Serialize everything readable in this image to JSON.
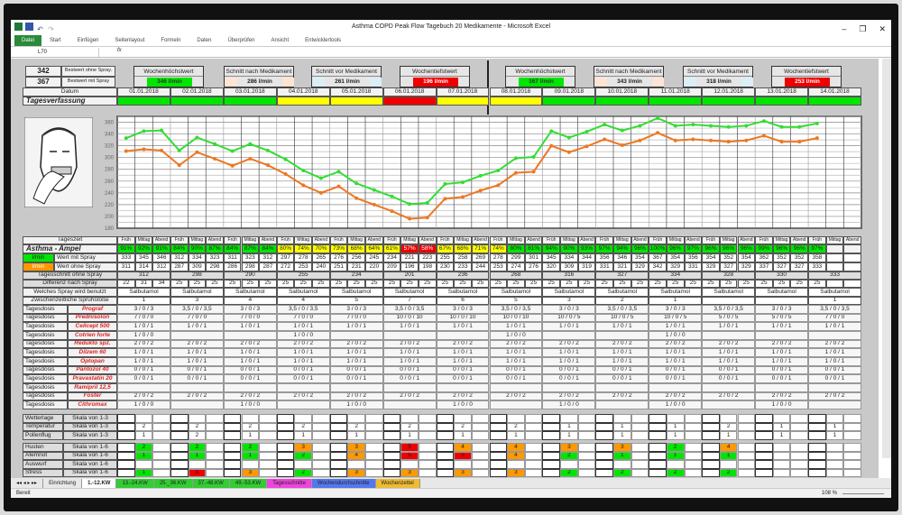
{
  "window": {
    "title": "Asthma COPD Peak Flow Tagebuch  20 Medikamente  -  Microsoft Excel"
  },
  "ribbon": {
    "tabs": [
      "Datei",
      "Start",
      "Einfügen",
      "Seitenlayout",
      "Formeln",
      "Daten",
      "Überprüfen",
      "Ansicht",
      "Entwicklertools"
    ]
  },
  "formula_bar": {
    "name_box": "L70",
    "fx": "fx",
    "value": ""
  },
  "best": {
    "ohne_value": "342",
    "ohne_label": "Bestwert ohne Spray.",
    "mit_value": "367",
    "mit_label": "Bestwert mit Spray"
  },
  "weeks": [
    {
      "hoechst_label": "Wochenhöchstwert",
      "hoechst": "346  l/min",
      "nach_label": "Schnitt nach Medikament",
      "nach": "286  l/min",
      "vor_label": "Schnitt vor Medikament",
      "vor": "261  l/min",
      "tief_label": "Wochentiefstwert",
      "tief": "196  l/min"
    },
    {
      "hoechst_label": "Wochenhöchstwert",
      "hoechst": "367  l/min",
      "nach_label": "Schnitt nach Medikament",
      "nach": "343  l/min",
      "vor_label": "Schnitt vor Medikament",
      "vor": "318  l/min",
      "tief_label": "Wochentiefstwert",
      "tief": "253  l/min"
    }
  ],
  "colors": {
    "green": "#00e600",
    "yellow": "#ffff00",
    "red": "#ee0000",
    "orange": "#ff9900",
    "line_mit": "#33dd33",
    "line_ohne": "#ee7722"
  },
  "labels": {
    "datum": "Datum",
    "tagesverfassung": "Tagesverfassung",
    "tageszeit": "Tageszeit",
    "ampel": "Asthma - Ampel",
    "unit": "l/min",
    "mit": "Wert mit Spray",
    "ohne": "Wert ohne Spray",
    "schnitt": "Tagesschnitt ohne Spray",
    "diff": "Differenz nach Spray",
    "spray": "Welches Spray wird benutzt",
    "zwisch": "Zwischenzeitliche Sprühstöße",
    "dosis": "Tagesdosis",
    "times": [
      "Früh",
      "Mittag",
      "Abend"
    ]
  },
  "dates": [
    "01.01.2018",
    "02.01.2018",
    "03.01.2018",
    "04.01.2018",
    "05.01.2018",
    "06.01.2018",
    "07.01.2018",
    "08.01.2018",
    "09.01.2018",
    "10.01.2018",
    "11.01.2018",
    "12.01.2018",
    "13.01.2018",
    "14.01.2018"
  ],
  "tagesverfassung": [
    "green",
    "green",
    "green",
    "yellow",
    "yellow",
    "red",
    "yellow",
    "yellow",
    "green",
    "green",
    "green",
    "green",
    "green",
    "green"
  ],
  "ampel": {
    "values": [
      "91%",
      "92%",
      "91%",
      "84%",
      "90%",
      "87%",
      "84%",
      "87%",
      "84%",
      "80%",
      "74%",
      "70%",
      "73%",
      "68%",
      "64%",
      "61%",
      "57%",
      "58%",
      "67%",
      "68%",
      "71%",
      "74%",
      "80%",
      "81%",
      "94%",
      "90%",
      "93%",
      "97%",
      "94%",
      "96%",
      "100%",
      "96%",
      "97%",
      "96%",
      "96%",
      "96%",
      "99%",
      "96%",
      "96%",
      "97%",
      "",
      ""
    ],
    "colors": [
      "green",
      "green",
      "green",
      "green",
      "green",
      "green",
      "green",
      "green",
      "green",
      "yellow",
      "yellow",
      "yellow",
      "yellow",
      "yellow",
      "yellow",
      "yellow",
      "red",
      "red",
      "yellow",
      "yellow",
      "yellow",
      "yellow",
      "green",
      "green",
      "green",
      "green",
      "green",
      "green",
      "green",
      "green",
      "green",
      "green",
      "green",
      "green",
      "green",
      "green",
      "green",
      "green",
      "green",
      "green",
      "",
      ""
    ]
  },
  "chart_data": {
    "type": "line",
    "ylim": [
      180,
      370
    ],
    "yticks": [
      180,
      200,
      220,
      240,
      260,
      280,
      300,
      320,
      340,
      360
    ],
    "grid": true,
    "series": [
      {
        "name": "Wert mit Spray",
        "color": "#33dd33",
        "values": [
          333,
          345,
          346,
          312,
          334,
          323,
          311,
          323,
          312,
          297,
          278,
          265,
          276,
          256,
          245,
          234,
          221,
          223,
          255,
          258,
          269,
          278,
          299,
          301,
          345,
          334,
          344,
          356,
          346,
          354,
          367,
          354,
          356,
          354,
          352,
          354,
          362,
          352,
          352,
          358
        ]
      },
      {
        "name": "Wert ohne Spray",
        "color": "#ee7722",
        "values": [
          311,
          314,
          312,
          287,
          309,
          298,
          286,
          298,
          287,
          272,
          253,
          240,
          251,
          231,
          220,
          209,
          196,
          198,
          230,
          233,
          244,
          253,
          274,
          276,
          320,
          309,
          319,
          331,
          321,
          329,
          342,
          329,
          331,
          329,
          327,
          329,
          337,
          327,
          327,
          333
        ]
      }
    ]
  },
  "schnitt": [
    "312",
    "298",
    "290",
    "255",
    "234",
    "201",
    "236",
    "268",
    "316",
    "327",
    "334",
    "328",
    "330",
    "333"
  ],
  "diff": [
    "22",
    "31",
    "34",
    "25",
    "25",
    "25",
    "25",
    "25",
    "25",
    "25",
    "25",
    "25",
    "25",
    "25",
    "25",
    "25",
    "25",
    "25",
    "25",
    "25",
    "25",
    "25",
    "25",
    "25",
    "25",
    "25",
    "25",
    "25",
    "25",
    "25",
    "25",
    "25",
    "25",
    "25",
    "25",
    "25",
    "25",
    "25",
    "25",
    "25",
    "",
    ""
  ],
  "spray": [
    "Salbutamol",
    "Salbutamol",
    "Salbutamol",
    "Salbutamol",
    "Salbutamol",
    "Salbutamol",
    "Salbutamol",
    "Salbutamol",
    "Salbutamol",
    "Salbutamol",
    "Salbutamol",
    "Salbutamol",
    "Salbutamol",
    "Salbutamol"
  ],
  "zwisch": [
    "1",
    "3",
    "4",
    "4",
    "5",
    "7",
    "6",
    "5",
    "3",
    "2",
    "1",
    "",
    "",
    "1"
  ],
  "meds": [
    {
      "name": "Prograf",
      "doses": [
        "3 / 0 / 3",
        "3,5 / 0 / 3,5",
        "3 / 0 / 3",
        "3,5 / 0 / 3,5",
        "3 / 0 / 3",
        "3,5 / 0 / 3,5",
        "3 / 0 / 3",
        "3,5 / 0 / 3,5",
        "3 / 0 / 3",
        "3,5 / 0 / 3,5",
        "3 / 0 / 3",
        "3,5 / 0 / 3,5",
        "3 / 0 / 3",
        "3,5 / 0 / 3,5"
      ]
    },
    {
      "name": "Prednisolon",
      "doses": [
        "7 / 0 / 0",
        "7 / 0 / 0",
        "7 / 0 / 0",
        "7 / 0 / 0",
        "7 / 0 / 0",
        "10 / 0 / 10",
        "10 / 0 / 10",
        "10 / 0 / 10",
        "10 / 0 / 5",
        "10 / 0 / 5",
        "10 / 0 / 5",
        "5 / 0 / 5",
        "5 / 0 / 5",
        "7 / 0 / 0"
      ]
    },
    {
      "name": "Cellcept 500",
      "doses": [
        "1 / 0 / 1",
        "1 / 0 / 1",
        "1 / 0 / 1",
        "1 / 0 / 1",
        "1 / 0 / 1",
        "1 / 0 / 1",
        "1 / 0 / 1",
        "1 / 0 / 1",
        "1 / 0 / 1",
        "1 / 0 / 1",
        "1 / 0 / 1",
        "1 / 0 / 1",
        "1 / 0 / 1",
        "1 / 0 / 1"
      ]
    },
    {
      "name": "Cotrien forte",
      "doses": [
        "1 / 0 / 0",
        "",
        "",
        "1 / 0 / 0",
        "",
        "",
        "",
        "1 / 0 / 0",
        "",
        "",
        "1 / 0 / 0",
        "",
        "",
        ""
      ]
    },
    {
      "name": "Redukto spz.",
      "doses": [
        "2 / 0 / 2",
        "2 / 0 / 2",
        "2 / 0 / 2",
        "2 / 0 / 2",
        "2 / 0 / 2",
        "2 / 0 / 2",
        "2 / 0 / 2",
        "2 / 0 / 2",
        "2 / 0 / 2",
        "2 / 0 / 2",
        "2 / 0 / 2",
        "2 / 0 / 2",
        "2 / 0 / 2",
        "2 / 0 / 2"
      ]
    },
    {
      "name": "Dilzem 60",
      "doses": [
        "1 / 0 / 1",
        "1 / 0 / 1",
        "1 / 0 / 1",
        "1 / 0 / 1",
        "1 / 0 / 1",
        "1 / 0 / 1",
        "1 / 0 / 1",
        "1 / 0 / 1",
        "1 / 0 / 1",
        "1 / 0 / 1",
        "1 / 0 / 1",
        "1 / 0 / 1",
        "1 / 0 / 1",
        "1 / 0 / 1"
      ]
    },
    {
      "name": "Optopan",
      "doses": [
        "1 / 0 / 1",
        "1 / 0 / 1",
        "1 / 0 / 1",
        "1 / 0 / 1",
        "1 / 0 / 1",
        "1 / 0 / 1",
        "1 / 0 / 1",
        "1 / 0 / 1",
        "1 / 0 / 1",
        "1 / 0 / 1",
        "1 / 0 / 1",
        "1 / 0 / 1",
        "1 / 0 / 1",
        "1 / 0 / 1"
      ]
    },
    {
      "name": "Pantozol 40",
      "doses": [
        "0 / 0 / 1",
        "0 / 0 / 1",
        "0 / 0 / 1",
        "0 / 0 / 1",
        "0 / 0 / 1",
        "0 / 0 / 1",
        "0 / 0 / 1",
        "0 / 0 / 1",
        "0 / 0 / 1",
        "0 / 0 / 1",
        "0 / 0 / 1",
        "0 / 0 / 1",
        "0 / 0 / 1",
        "0 / 0 / 1"
      ]
    },
    {
      "name": "Pravastatin 20",
      "doses": [
        "0 / 0 / 1",
        "0 / 0 / 1",
        "0 / 0 / 1",
        "0 / 0 / 1",
        "0 / 0 / 1",
        "0 / 0 / 1",
        "0 / 0 / 1",
        "0 / 0 / 1",
        "0 / 0 / 1",
        "0 / 0 / 1",
        "0 / 0 / 1",
        "0 / 0 / 1",
        "0 / 0 / 1",
        "0 / 0 / 1"
      ]
    },
    {
      "name": "Ramipril 12,5",
      "doses": [
        "",
        "",
        "",
        "",
        "",
        "",
        "",
        "",
        "",
        "",
        "",
        "",
        "",
        ""
      ]
    },
    {
      "name": "Foster",
      "doses": [
        "2 / 0 / 2",
        "2 / 0 / 2",
        "2 / 0 / 2",
        "2 / 0 / 2",
        "2 / 0 / 2",
        "2 / 0 / 2",
        "2 / 0 / 2",
        "2 / 0 / 2",
        "2 / 0 / 2",
        "2 / 0 / 2",
        "2 / 0 / 2",
        "2 / 0 / 2",
        "2 / 0 / 2",
        "2 / 0 / 2"
      ]
    },
    {
      "name": "Cithromax",
      "doses": [
        "1 / 0 / 0",
        "",
        "1 / 0 / 0",
        "",
        "1 / 0 / 0",
        "",
        "1 / 0 / 0",
        "",
        "1 / 0 / 0",
        "",
        "1 / 0 / 0",
        "",
        "1 / 0 / 0",
        ""
      ]
    }
  ],
  "weather": [
    {
      "name": "Wetterlage",
      "scale": "Skala von 1-3",
      "values": [
        "",
        "",
        "",
        "",
        "",
        "",
        "",
        "",
        "",
        "",
        "",
        "",
        "",
        ""
      ]
    },
    {
      "name": "Temperatur",
      "scale": "Skala von 1-3",
      "values": [
        "2",
        "2",
        "2",
        "2",
        "2",
        "2",
        "2",
        "2",
        "1",
        "1",
        "1",
        "2",
        "1",
        "1"
      ]
    },
    {
      "name": "Pollenflug",
      "scale": "Skala von 1-3",
      "values": [
        "1",
        "2",
        "1",
        "1",
        "1",
        "1",
        "1",
        "1",
        "1",
        "1",
        "1",
        "1",
        "1",
        "1"
      ]
    }
  ],
  "symptoms": [
    {
      "name": "Husten",
      "scale": "Skala von 1-6",
      "values": [
        "2",
        "2",
        "2",
        "3",
        "3",
        "5",
        "4",
        "4",
        "3",
        "3",
        "2",
        "4",
        "",
        ""
      ]
    },
    {
      "name": "Atemnot",
      "scale": "Skala von 1-6",
      "values": [
        "1",
        "1",
        "1",
        "2",
        "4",
        "5",
        "5",
        "4",
        "2",
        "1",
        "1",
        "1",
        "",
        ""
      ]
    },
    {
      "name": "Auswurf",
      "scale": "Skala von 1-6",
      "values": [
        "",
        "",
        "",
        "",
        "",
        "",
        "",
        "",
        "",
        "",
        "",
        "",
        "",
        ""
      ]
    },
    {
      "name": "Stress",
      "scale": "Skala von 1-6",
      "values": [
        "1",
        "5",
        "3",
        "2",
        "3",
        "3",
        "3",
        "3",
        "2",
        "2",
        "2",
        "2",
        "",
        ""
      ]
    }
  ],
  "sheet_tabs": [
    {
      "label": "Einrichtung",
      "color": "#e8e8e8"
    },
    {
      "label": "1.-12.KW",
      "color": "#ffffff",
      "active": true
    },
    {
      "label": "13.-24.KW",
      "color": "#33cc33"
    },
    {
      "label": "25._36.KW",
      "color": "#33cc33"
    },
    {
      "label": "37.-48.KW",
      "color": "#33cc33"
    },
    {
      "label": "49.-53.KW",
      "color": "#33cc33"
    },
    {
      "label": "Tagesschnitte",
      "color": "#ee44dd"
    },
    {
      "label": "Wochendurchschnitte",
      "color": "#5577ee"
    },
    {
      "label": "Wochenzettel",
      "color": "#eebb33"
    }
  ],
  "status": {
    "ready": "Bereit",
    "zoom": "108 %"
  }
}
